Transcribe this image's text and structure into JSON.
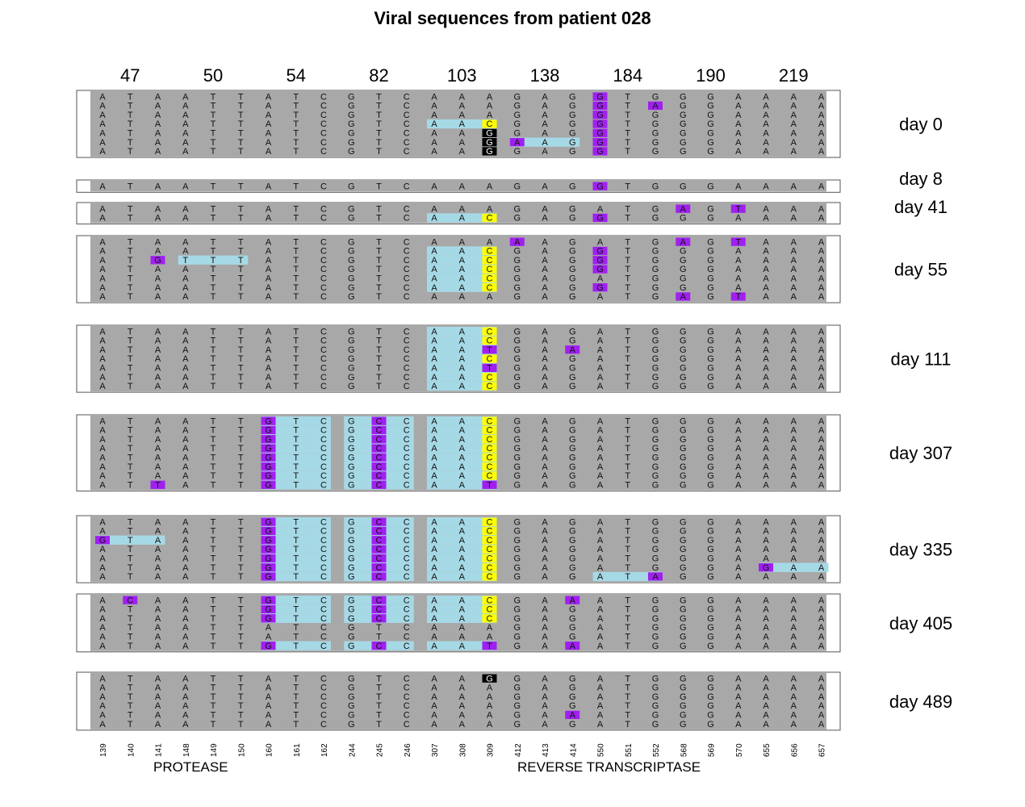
{
  "title": "Viral sequences from patient 028",
  "codons": [
    "47",
    "50",
    "54",
    "82",
    "103",
    "138",
    "184",
    "190",
    "219"
  ],
  "positions": [
    "139",
    "140",
    "141",
    "148",
    "149",
    "150",
    "160",
    "161",
    "162",
    "244",
    "245",
    "246",
    "307",
    "308",
    "309",
    "412",
    "413",
    "414",
    "550",
    "551",
    "552",
    "568",
    "569",
    "570",
    "655",
    "656",
    "657"
  ],
  "genes": [
    "PROTEASE",
    "REVERSE TRANSCRIPTASE"
  ],
  "colors": {
    "background": "#a8a8a8",
    "codon_block": "#a6d9e6",
    "mutant": "#a020f0",
    "yellow": "#ffff00",
    "black": "#000000"
  },
  "legend": {
    "base_colors": {
      "P": "#a020f0",
      "Y": "#ffff00",
      "K": "#000000",
      "B": "#a6d9e6"
    }
  },
  "groups": [
    {
      "label": "day 0",
      "rows": [
        {
          "seq": "ATAATTATCGTCAAAGAGGTGGGAAAA",
          "marks": "......................P....",
          "blue": [],
          "colors": "000000000000000000P00000000"
        },
        {
          "seq": "ATAATTATCGTCAAAGAGGTAGGAAAA",
          "marks": "",
          "blue": [],
          "colors": "000000000000000000P0P000000"
        },
        {
          "seq": "ATAATTATCGTCAAAGAGGTGGGAAAA",
          "marks": "",
          "blue": [],
          "colors": "000000000000000000P00000000"
        },
        {
          "seq": "ATAATTATCGTCAACGAGGTGGGAAAA",
          "marks": "",
          "blue": [
            4
          ],
          "colors": "00000000000000Y000P00000000"
        },
        {
          "seq": "ATAATTATCGTCAAGGAGGTGGGAAAA",
          "marks": "",
          "blue": [],
          "colors": "00000000000000K000P00000000"
        },
        {
          "seq": "ATAATTATCGTCAAGAAGGTGGGAAAA",
          "marks": "",
          "blue": [
            5
          ],
          "colors": "00000000000000KP00P00000000"
        },
        {
          "seq": "ATAATTATCGTCAAGGAGGTGGGAAAA",
          "marks": "",
          "blue": [],
          "colors": "00000000000000K000P00000000"
        }
      ]
    },
    {
      "label": "day 8",
      "rows": [
        {
          "seq": "ATAATTATCGTCAAAGAGGTGGGAAAA",
          "marks": "",
          "blue": [],
          "colors": "000000000000000000P00000000"
        }
      ]
    },
    {
      "label": "day 41",
      "rows": [
        {
          "seq": "ATAATTATCGTCAAAGAGATGAGTAAA",
          "marks": "",
          "blue": [],
          "colors": "000000000000000000000P0P000"
        },
        {
          "seq": "ATAATTATCGTCAACGAGGTGGGAAAA",
          "marks": "",
          "blue": [
            4
          ],
          "colors": "00000000000000Y000P00000000"
        }
      ]
    },
    {
      "label": "day 55",
      "rows": [
        {
          "seq": "ATAATTATCGTCAAAAAGATGAGTAAA",
          "marks": "",
          "blue": [],
          "colors": "000000000000000P00000P0P000"
        },
        {
          "seq": "ATAATTATCGTCAACGAGGTGGGAAAA",
          "marks": "",
          "blue": [
            4
          ],
          "colors": "00000000000000Y000P00000000"
        },
        {
          "seq": "ATGTTTATCGTCAACGAGGTGGGAAAA",
          "marks": "",
          "blue": [
            1,
            4
          ],
          "colors": "00P00000000000Y000P00000000"
        },
        {
          "seq": "ATAATTATCGTCAACGAGGTGGGAAAA",
          "marks": "",
          "blue": [
            4
          ],
          "colors": "00000000000000Y000P00000000"
        },
        {
          "seq": "ATAATTATCGTCAACGAGATGGGAAAA",
          "marks": "",
          "blue": [
            4
          ],
          "colors": "00000000000000Y000000000000"
        },
        {
          "seq": "ATAATTATCGTCAACGAGGTGGGAAAA",
          "marks": "",
          "blue": [
            4
          ],
          "colors": "00000000000000Y000P00000000"
        },
        {
          "seq": "ATAATTATCGTCAAAGAGATGAGTAAA",
          "marks": "",
          "blue": [],
          "colors": "000000000000000000000P0P000"
        }
      ]
    },
    {
      "label": "day 111",
      "rows": [
        {
          "seq": "ATAATTATCGTCAACGAGATGGGAAAA",
          "marks": "",
          "blue": [
            4
          ],
          "colors": "00000000000000Y000000000000"
        },
        {
          "seq": "ATAATTATCGTCAACGAGATGGGAAAA",
          "marks": "",
          "blue": [
            4
          ],
          "colors": "00000000000000Y000000000000"
        },
        {
          "seq": "ATAATTATCGTCAATGAAATGGGAAAA",
          "marks": "",
          "blue": [
            4
          ],
          "colors": "00000000000000P00P000000000"
        },
        {
          "seq": "ATAATTATCGTCAACGAGATGGGAAAA",
          "marks": "",
          "blue": [
            4
          ],
          "colors": "00000000000000Y000000000000"
        },
        {
          "seq": "ATAATTATCGTCAATGAGATGGGAAAA",
          "marks": "",
          "blue": [
            4
          ],
          "colors": "00000000000000P000000000000"
        },
        {
          "seq": "ATAATTATCGTCAACGAGATGGGAAAA",
          "marks": "",
          "blue": [
            4
          ],
          "colors": "00000000000000Y000000000000"
        },
        {
          "seq": "ATAATTATCGTCAACGAGATGGGAAAA",
          "marks": "",
          "blue": [
            4
          ],
          "colors": "00000000000000Y000000000000"
        }
      ]
    },
    {
      "label": "day 307",
      "rows": [
        {
          "seq": "ATAATTGTCGCCAACGAGATGGGAAAA",
          "marks": "",
          "blue": [
            2,
            3,
            4
          ],
          "colors": "000000P000P000Y000000000000"
        },
        {
          "seq": "ATAATTGTCGCCAACGAGATGGGAAAA",
          "marks": "",
          "blue": [
            2,
            3,
            4
          ],
          "colors": "000000P000P000Y000000000000"
        },
        {
          "seq": "ATAATTGTCGCCAACGAGATGGGAAAA",
          "marks": "",
          "blue": [
            2,
            3,
            4
          ],
          "colors": "000000P000P000Y000000000000"
        },
        {
          "seq": "ATAATTGTCGCCAACGAGATGGGAAAA",
          "marks": "",
          "blue": [
            2,
            3,
            4
          ],
          "colors": "000000P000P000Y000000000000"
        },
        {
          "seq": "ATAATTGTCGCCAACGAGATGGGAAAA",
          "marks": "",
          "blue": [
            2,
            3,
            4
          ],
          "colors": "000000P000P000Y000000000000"
        },
        {
          "seq": "ATAATTGTCGCCAACGAGATGGGAAAA",
          "marks": "",
          "blue": [
            2,
            3,
            4
          ],
          "colors": "000000P000P000Y000000000000"
        },
        {
          "seq": "ATAATTGTCGCCAACGAGATGGGAAAA",
          "marks": "",
          "blue": [
            2,
            3,
            4
          ],
          "colors": "000000P000P000Y000000000000"
        },
        {
          "seq": "ATTATTGTCGCCAATGAGATGGGAAAA",
          "marks": "",
          "blue": [
            2,
            3,
            4
          ],
          "colors": "00P000P000P000P000000000000"
        }
      ]
    },
    {
      "label": "day 335",
      "rows": [
        {
          "seq": "ATAATTGTCGCCAACGAGATGGGAAAA",
          "marks": "",
          "blue": [
            2,
            3,
            4
          ],
          "colors": "000000P000P000Y000000000000"
        },
        {
          "seq": "ATAATTGTCGCCAACGAGATGGGAAAA",
          "marks": "",
          "blue": [
            2,
            3,
            4
          ],
          "colors": "000000P000P000Y000000000000"
        },
        {
          "seq": "GTAATTGTCGCCAACGAGATGGGAAAA",
          "marks": "",
          "blue": [
            0,
            2,
            3,
            4
          ],
          "colors": "P00000P000P000Y000000000000"
        },
        {
          "seq": "ATAATTGTCGCCAACGAGATGGGAAAA",
          "marks": "",
          "blue": [
            2,
            3,
            4
          ],
          "colors": "000000P000P000Y000000000000"
        },
        {
          "seq": "ATAATTGTCGCCAACGAGATGGGAAAA",
          "marks": "",
          "blue": [
            2,
            3,
            4
          ],
          "colors": "000000P000P000Y000000000000"
        },
        {
          "seq": "ATAATTGTCGCCAACGAGATGGGAGAA",
          "marks": "",
          "blue": [
            2,
            3,
            4,
            8
          ],
          "colors": "000000P000P000Y000000000P00"
        },
        {
          "seq": "ATAATTGTCGCCAACGAGATAGGAAAA",
          "marks": "",
          "blue": [
            2,
            3,
            4,
            6
          ],
          "colors": "000000P000P000Y00000P000000"
        }
      ]
    },
    {
      "label": "day 405",
      "rows": [
        {
          "seq": "ACAATTGTCGCCAACGAAATGGGAAAA",
          "marks": "",
          "blue": [
            2,
            3,
            4
          ],
          "colors": "0P0000P000P000Y00P000000000"
        },
        {
          "seq": "ATAATTGTCGCCAACGAGATGGGAAAA",
          "marks": "",
          "blue": [
            2,
            3,
            4
          ],
          "colors": "000000P000P000Y000000000000"
        },
        {
          "seq": "ATAATTGTCGCCAACGAGATGGGAAAA",
          "marks": "",
          "blue": [
            2,
            3,
            4
          ],
          "colors": "000000P000P000Y000000000000"
        },
        {
          "seq": "ATAATTATCGTCAAAGAGATGGGAAAA",
          "marks": "",
          "blue": [],
          "colors": "000000000000000000000000000"
        },
        {
          "seq": "ATAATTATCGTCAAAGAGATGGGAAAA",
          "marks": "",
          "blue": [],
          "colors": "000000000000000000000000000"
        },
        {
          "seq": "ATAATTGTCGCCAATGAAATGGGAAAA",
          "marks": "",
          "blue": [
            2,
            3,
            4
          ],
          "colors": "000000P000P000P00P000000000"
        }
      ]
    },
    {
      "label": "day 489",
      "rows": [
        {
          "seq": "ATAATTATCGTCAAGGAGATGGGAAAA",
          "marks": "",
          "blue": [],
          "colors": "00000000000000K000000000000"
        },
        {
          "seq": "ATAATTATCGTCAAAGAGATGGGAAAA",
          "marks": "",
          "blue": [],
          "colors": "000000000000000000000000000"
        },
        {
          "seq": "ATAATTATCGTCAAAGAGATGGGAAAA",
          "marks": "",
          "blue": [],
          "colors": "000000000000000000000000000"
        },
        {
          "seq": "ATAATTATCGTCAAAGAGATGGGAAAA",
          "marks": "",
          "blue": [],
          "colors": "000000000000000000000000000"
        },
        {
          "seq": "ATAATTATCGTCAAAGAAATGGGAAAA",
          "marks": "",
          "blue": [],
          "colors": "00000000000000000P000000000"
        },
        {
          "seq": "ATAATTATCGTCAAAGAGATGGGAAAA",
          "marks": "",
          "blue": [],
          "colors": "000000000000000000000000000"
        }
      ]
    }
  ]
}
